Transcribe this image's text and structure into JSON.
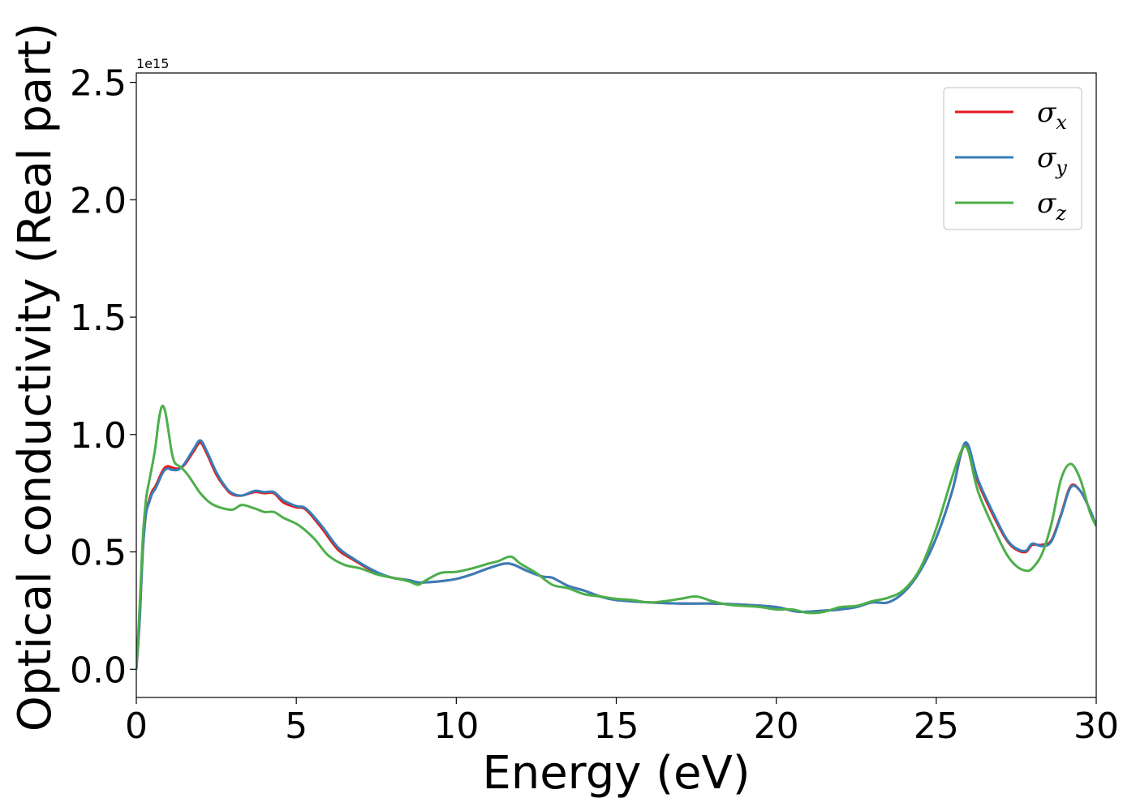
{
  "chart_data": {
    "type": "line",
    "xlabel": "Energy (eV)",
    "ylabel": "Optical conductivity (Real part)",
    "y_offset_label": "1e15",
    "y_scale_factor": 1000000000000000.0,
    "xlim": [
      0,
      30
    ],
    "ylim": [
      -0.12,
      2.54
    ],
    "xticks": [
      0,
      5,
      10,
      15,
      20,
      25,
      30
    ],
    "xtick_labels": [
      "0",
      "5",
      "10",
      "15",
      "20",
      "25",
      "30"
    ],
    "yticks": [
      0.0,
      0.5,
      1.0,
      1.5,
      2.0,
      2.5
    ],
    "ytick_labels": [
      "0.0",
      "0.5",
      "1.0",
      "1.5",
      "2.0",
      "2.5"
    ],
    "grid": false,
    "legend_position": "top-right",
    "series": [
      {
        "name": "σx",
        "symbol": "σ",
        "subscript": "x",
        "color": "#e41a1c",
        "x": [
          0,
          0.1,
          0.2,
          0.3,
          0.4,
          0.5,
          0.6,
          0.8,
          0.9,
          1.0,
          1.1,
          1.3,
          1.5,
          1.8,
          2.0,
          2.2,
          2.5,
          2.8,
          3.0,
          3.3,
          3.7,
          4.0,
          4.3,
          4.6,
          5.0,
          5.3,
          5.8,
          6.3,
          6.8,
          7.5,
          8.0,
          8.5,
          8.8,
          9.0,
          9.5,
          10.0,
          10.5,
          11.0,
          11.5,
          11.8,
          12.2,
          12.7,
          13.0,
          13.5,
          14.0,
          14.5,
          15.0,
          16.0,
          17.0,
          18.0,
          19.0,
          20.0,
          20.7,
          21.5,
          22.0,
          22.5,
          23.0,
          23.5,
          24.0,
          24.5,
          25.0,
          25.5,
          25.8,
          26.0,
          26.3,
          26.8,
          27.2,
          27.5,
          27.8,
          28.0,
          28.3,
          28.6,
          28.9,
          29.2,
          29.5,
          29.8,
          30.0
        ],
        "values": [
          0.0,
          0.2,
          0.5,
          0.66,
          0.72,
          0.76,
          0.78,
          0.84,
          0.86,
          0.865,
          0.86,
          0.855,
          0.87,
          0.93,
          0.965,
          0.92,
          0.83,
          0.77,
          0.745,
          0.74,
          0.755,
          0.75,
          0.75,
          0.71,
          0.69,
          0.68,
          0.6,
          0.51,
          0.465,
          0.41,
          0.39,
          0.38,
          0.37,
          0.37,
          0.375,
          0.385,
          0.405,
          0.43,
          0.45,
          0.445,
          0.42,
          0.395,
          0.39,
          0.355,
          0.335,
          0.31,
          0.295,
          0.285,
          0.28,
          0.28,
          0.275,
          0.265,
          0.245,
          0.25,
          0.255,
          0.265,
          0.285,
          0.285,
          0.33,
          0.42,
          0.56,
          0.76,
          0.93,
          0.95,
          0.8,
          0.65,
          0.55,
          0.51,
          0.5,
          0.53,
          0.53,
          0.55,
          0.66,
          0.78,
          0.76,
          0.68,
          0.61
        ]
      },
      {
        "name": "σy",
        "symbol": "σ",
        "subscript": "y",
        "color": "#377eb8",
        "x": [
          0,
          0.1,
          0.2,
          0.3,
          0.4,
          0.5,
          0.6,
          0.8,
          0.9,
          1.0,
          1.1,
          1.3,
          1.5,
          1.8,
          2.0,
          2.2,
          2.5,
          2.8,
          3.0,
          3.3,
          3.7,
          4.0,
          4.3,
          4.6,
          5.0,
          5.3,
          5.8,
          6.3,
          6.8,
          7.5,
          8.0,
          8.5,
          8.8,
          9.0,
          9.5,
          10.0,
          10.5,
          11.0,
          11.5,
          11.8,
          12.2,
          12.7,
          13.0,
          13.5,
          14.0,
          14.5,
          15.0,
          16.0,
          17.0,
          18.0,
          19.0,
          20.0,
          20.7,
          21.5,
          22.0,
          22.5,
          23.0,
          23.5,
          24.0,
          24.5,
          25.0,
          25.5,
          25.8,
          26.0,
          26.3,
          26.8,
          27.2,
          27.5,
          27.8,
          28.0,
          28.3,
          28.6,
          28.9,
          29.2,
          29.5,
          29.8,
          30.0
        ],
        "values": [
          0.0,
          0.2,
          0.5,
          0.66,
          0.71,
          0.75,
          0.77,
          0.83,
          0.85,
          0.855,
          0.85,
          0.85,
          0.875,
          0.94,
          0.975,
          0.93,
          0.84,
          0.775,
          0.75,
          0.74,
          0.76,
          0.755,
          0.755,
          0.72,
          0.695,
          0.685,
          0.61,
          0.52,
          0.47,
          0.415,
          0.39,
          0.38,
          0.37,
          0.37,
          0.375,
          0.385,
          0.405,
          0.43,
          0.45,
          0.445,
          0.42,
          0.395,
          0.39,
          0.355,
          0.335,
          0.31,
          0.295,
          0.285,
          0.28,
          0.28,
          0.275,
          0.265,
          0.245,
          0.25,
          0.255,
          0.265,
          0.285,
          0.285,
          0.33,
          0.42,
          0.56,
          0.76,
          0.935,
          0.955,
          0.81,
          0.66,
          0.555,
          0.515,
          0.505,
          0.535,
          0.525,
          0.545,
          0.655,
          0.775,
          0.76,
          0.68,
          0.61
        ]
      },
      {
        "name": "σz",
        "symbol": "σ",
        "subscript": "z",
        "color": "#4daf4a",
        "x": [
          0,
          0.1,
          0.2,
          0.3,
          0.4,
          0.5,
          0.6,
          0.7,
          0.8,
          0.9,
          1.0,
          1.1,
          1.2,
          1.4,
          1.6,
          1.8,
          2.0,
          2.3,
          2.6,
          3.0,
          3.3,
          3.7,
          4.0,
          4.3,
          4.6,
          5.0,
          5.3,
          5.6,
          6.0,
          6.5,
          7.0,
          7.5,
          8.0,
          8.5,
          8.8,
          9.0,
          9.5,
          10.0,
          10.5,
          11.0,
          11.3,
          11.7,
          12.0,
          12.5,
          13.0,
          13.5,
          14.0,
          14.5,
          15.0,
          15.5,
          16.0,
          16.5,
          17.0,
          17.5,
          18.0,
          18.5,
          19.0,
          19.5,
          20.0,
          20.5,
          21.0,
          21.5,
          22.0,
          22.5,
          23.0,
          23.5,
          24.0,
          24.5,
          25.0,
          25.5,
          25.8,
          26.0,
          26.3,
          26.8,
          27.2,
          27.5,
          27.8,
          28.0,
          28.3,
          28.6,
          28.9,
          29.2,
          29.5,
          29.8,
          30.0
        ],
        "values": [
          0.0,
          0.25,
          0.55,
          0.72,
          0.8,
          0.87,
          0.95,
          1.06,
          1.12,
          1.1,
          1.02,
          0.93,
          0.88,
          0.86,
          0.83,
          0.79,
          0.75,
          0.71,
          0.69,
          0.68,
          0.7,
          0.685,
          0.67,
          0.67,
          0.645,
          0.62,
          0.59,
          0.55,
          0.485,
          0.445,
          0.43,
          0.405,
          0.39,
          0.375,
          0.36,
          0.375,
          0.41,
          0.415,
          0.43,
          0.45,
          0.46,
          0.48,
          0.45,
          0.41,
          0.36,
          0.345,
          0.32,
          0.31,
          0.3,
          0.295,
          0.285,
          0.29,
          0.3,
          0.31,
          0.29,
          0.275,
          0.27,
          0.265,
          0.255,
          0.255,
          0.24,
          0.245,
          0.265,
          0.27,
          0.29,
          0.305,
          0.34,
          0.43,
          0.6,
          0.82,
          0.935,
          0.93,
          0.76,
          0.6,
          0.49,
          0.44,
          0.42,
          0.43,
          0.49,
          0.62,
          0.81,
          0.875,
          0.81,
          0.67,
          0.61
        ]
      }
    ]
  }
}
